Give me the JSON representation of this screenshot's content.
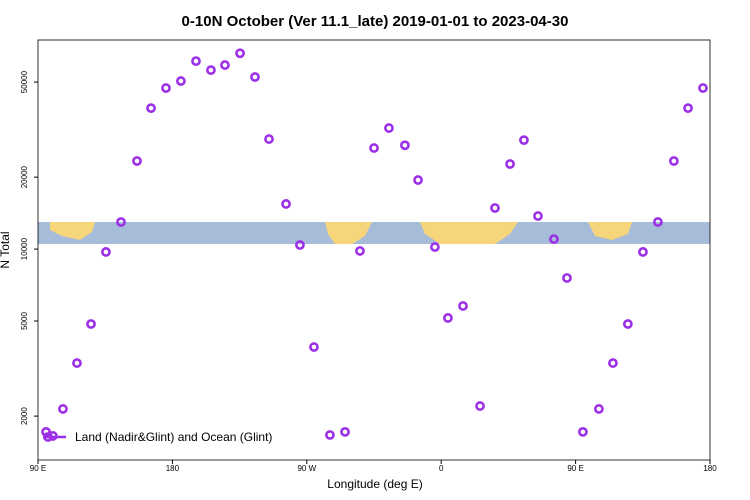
{
  "chart_data": {
    "type": "scatter",
    "title": "0-10N October (Ver 11.1_late)   2019-01-01 to 2023-04-30",
    "x_label": "Longitude (deg E)",
    "y_label": "N Total",
    "ylog": true,
    "xlim": [
      90,
      540
    ],
    "ylim": [
      1310,
      75000
    ],
    "xticks": [
      {
        "value": 90,
        "label": "90 E"
      },
      180,
      {
        "value": 270,
        "label": "90 W"
      },
      {
        "value": 360,
        "label": "0"
      },
      {
        "value": 450,
        "label": "90 E"
      },
      {
        "value": 540,
        "label": "180"
      }
    ],
    "yticks": [
      2000,
      5000,
      10000,
      20000,
      50000
    ],
    "legend_position": "lower left",
    "series": [
      {
        "name": "Land (Nadir&Glint) and Ocean (Glint)",
        "color": "#9b30e8",
        "x": [
          95.4,
          100,
          106.7,
          116.1,
          125.5,
          135.5,
          145.6,
          156.3,
          165.7,
          175.7,
          185.7,
          195.8,
          205.8,
          215.2,
          225.3,
          235.3,
          244.7,
          256.1,
          265.4,
          274.8,
          285.5,
          295.6,
          305.6,
          315,
          325,
          335.7,
          344.5,
          355.8,
          364.5,
          374.6,
          386,
          396,
          406.1,
          415.4,
          424.8,
          435.5,
          444.2,
          454.9,
          465.6,
          475,
          485,
          495.1,
          505.1,
          515.8,
          525.3,
          535.3
        ],
        "values": [
          1718,
          1652,
          2143,
          3334,
          4857,
          9727,
          12980,
          23370,
          38900,
          47200,
          50500,
          61200,
          56100,
          58900,
          66000,
          52500,
          28870,
          15450,
          10400,
          3890,
          1667,
          1718,
          9820,
          26480,
          32100,
          27200,
          19450,
          10200,
          5150,
          5780,
          2203,
          14860,
          22700,
          28580,
          13750,
          11010,
          7570,
          1718,
          2143,
          3334,
          4857,
          9727,
          12980,
          23370,
          38900,
          47200
        ]
      }
    ]
  }
}
